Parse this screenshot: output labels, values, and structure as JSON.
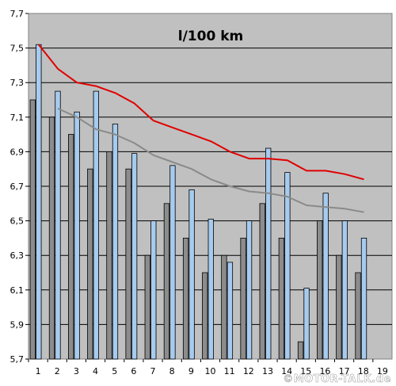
{
  "chart_data": {
    "type": "bar",
    "title": "l/100 km",
    "x": [
      1,
      2,
      3,
      4,
      5,
      6,
      7,
      8,
      9,
      10,
      11,
      12,
      13,
      14,
      15,
      16,
      17,
      18,
      19
    ],
    "x_labels": [
      "1",
      "2",
      "3",
      "4",
      "5",
      "6",
      "7",
      "8",
      "9",
      "10",
      "11",
      "12",
      "13",
      "14",
      "15",
      "16",
      "17",
      "18",
      "19"
    ],
    "y_ticks": [
      "5,7",
      "5,9",
      "6,1",
      "6,3",
      "6,5",
      "6,7",
      "6,9",
      "7,1",
      "7,3",
      "7,5",
      "7,7"
    ],
    "ylim": [
      5.7,
      7.7
    ],
    "grid": true,
    "legend": "none",
    "series": [
      {
        "type": "bar",
        "color": "#8c8c8c",
        "values": [
          7.2,
          7.1,
          7.0,
          6.8,
          6.9,
          6.8,
          6.3,
          6.6,
          6.4,
          6.2,
          6.3,
          6.4,
          6.6,
          6.4,
          5.8,
          6.5,
          6.3,
          6.2,
          null
        ]
      },
      {
        "type": "bar",
        "color": "#a6cbee",
        "values": [
          7.52,
          7.25,
          7.13,
          7.25,
          7.06,
          6.89,
          6.5,
          6.82,
          6.68,
          6.51,
          6.26,
          6.5,
          6.92,
          6.78,
          6.11,
          6.66,
          6.5,
          6.4,
          null
        ]
      },
      {
        "type": "line",
        "color": "#e00000",
        "values": [
          7.52,
          7.38,
          7.3,
          7.28,
          7.24,
          7.18,
          7.08,
          7.04,
          7.0,
          6.96,
          6.9,
          6.86,
          6.86,
          6.85,
          6.79,
          6.79,
          6.77,
          6.74,
          null
        ]
      },
      {
        "type": "line",
        "color": "#8a8a8a",
        "values": [
          null,
          7.15,
          7.1,
          7.03,
          7.0,
          6.95,
          6.88,
          6.84,
          6.8,
          6.74,
          6.7,
          6.67,
          6.66,
          6.64,
          6.59,
          6.58,
          6.57,
          6.55,
          null
        ]
      }
    ]
  },
  "watermark": "©MOTOR-TALK.de"
}
